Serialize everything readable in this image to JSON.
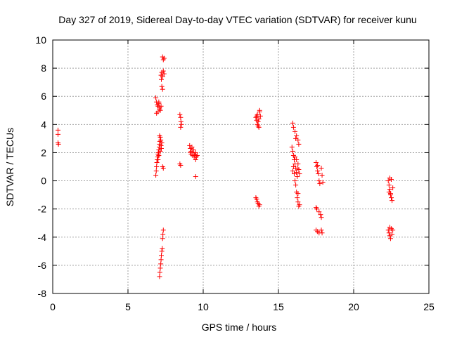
{
  "chart_data": {
    "type": "scatter",
    "title": "Day 327 of 2019, Sidereal Day-to-day VTEC variation (SDTVAR) for receiver kunu",
    "xlabel": "GPS time / hours",
    "ylabel": "SDTVAR / TECUs",
    "xlim": [
      0,
      25
    ],
    "ylim": [
      -8,
      10
    ],
    "xticks": [
      0,
      5,
      10,
      15,
      20,
      25
    ],
    "yticks": [
      -8,
      -6,
      -4,
      -2,
      0,
      2,
      4,
      6,
      8,
      10
    ],
    "grid": true,
    "marker": "+",
    "color": "#ff0000",
    "series": [
      {
        "name": "SDTVAR",
        "points": [
          [
            0.35,
            3.6
          ],
          [
            0.35,
            3.3
          ],
          [
            0.35,
            2.7
          ],
          [
            0.38,
            2.6
          ],
          [
            6.85,
            5.9
          ],
          [
            6.9,
            5.6
          ],
          [
            6.95,
            5.4
          ],
          [
            7.0,
            5.3
          ],
          [
            7.05,
            5.6
          ],
          [
            7.1,
            5.2
          ],
          [
            7.15,
            5.0
          ],
          [
            6.9,
            4.8
          ],
          [
            7.0,
            4.9
          ],
          [
            7.05,
            5.5
          ],
          [
            7.1,
            5.1
          ],
          [
            7.2,
            5.3
          ],
          [
            6.85,
            0.4
          ],
          [
            6.88,
            0.7
          ],
          [
            6.9,
            1.0
          ],
          [
            6.92,
            1.3
          ],
          [
            6.95,
            1.5
          ],
          [
            6.98,
            1.7
          ],
          [
            7.0,
            1.9
          ],
          [
            7.02,
            2.0
          ],
          [
            7.05,
            2.2
          ],
          [
            7.08,
            2.4
          ],
          [
            7.1,
            2.6
          ],
          [
            7.12,
            2.8
          ],
          [
            7.15,
            3.1
          ],
          [
            7.18,
            2.9
          ],
          [
            7.2,
            2.5
          ],
          [
            7.22,
            2.3
          ],
          [
            7.25,
            2.7
          ],
          [
            7.1,
            3.2
          ],
          [
            7.0,
            1.5
          ],
          [
            7.05,
            1.8
          ],
          [
            7.15,
            2.1
          ],
          [
            7.3,
            1.0
          ],
          [
            7.35,
            0.9
          ],
          [
            7.2,
            7.5
          ],
          [
            7.25,
            7.7
          ],
          [
            7.3,
            7.4
          ],
          [
            7.35,
            7.8
          ],
          [
            7.4,
            7.6
          ],
          [
            7.3,
            8.8
          ],
          [
            7.35,
            8.6
          ],
          [
            7.4,
            8.7
          ],
          [
            7.25,
            6.7
          ],
          [
            7.3,
            6.5
          ],
          [
            7.22,
            7.2
          ],
          [
            7.1,
            -6.8
          ],
          [
            7.12,
            -6.5
          ],
          [
            7.15,
            -6.2
          ],
          [
            7.18,
            -5.9
          ],
          [
            7.2,
            -5.6
          ],
          [
            7.22,
            -5.3
          ],
          [
            7.25,
            -5.0
          ],
          [
            7.28,
            -4.8
          ],
          [
            7.3,
            -4.1
          ],
          [
            7.32,
            -3.8
          ],
          [
            7.35,
            -3.5
          ],
          [
            8.45,
            4.7
          ],
          [
            8.5,
            4.5
          ],
          [
            8.52,
            4.2
          ],
          [
            8.55,
            4.0
          ],
          [
            8.5,
            3.8
          ],
          [
            8.45,
            1.2
          ],
          [
            8.5,
            1.1
          ],
          [
            9.1,
            2.5
          ],
          [
            9.15,
            2.3
          ],
          [
            9.2,
            2.1
          ],
          [
            9.25,
            2.4
          ],
          [
            9.3,
            2.0
          ],
          [
            9.35,
            2.2
          ],
          [
            9.4,
            1.9
          ],
          [
            9.45,
            1.8
          ],
          [
            9.5,
            2.0
          ],
          [
            9.55,
            1.7
          ],
          [
            9.6,
            1.8
          ],
          [
            9.2,
            1.9
          ],
          [
            9.3,
            1.8
          ],
          [
            9.4,
            1.7
          ],
          [
            9.5,
            1.5
          ],
          [
            9.15,
            2.0
          ],
          [
            9.5,
            0.3
          ],
          [
            13.5,
            4.5
          ],
          [
            13.55,
            4.3
          ],
          [
            13.6,
            4.7
          ],
          [
            13.65,
            4.2
          ],
          [
            13.7,
            4.4
          ],
          [
            13.75,
            4.9
          ],
          [
            13.6,
            4.0
          ],
          [
            13.65,
            3.9
          ],
          [
            13.7,
            3.8
          ],
          [
            13.55,
            4.6
          ],
          [
            13.75,
            5.0
          ],
          [
            13.8,
            4.6
          ],
          [
            13.5,
            -1.2
          ],
          [
            13.55,
            -1.3
          ],
          [
            13.6,
            -1.5
          ],
          [
            13.65,
            -1.6
          ],
          [
            13.7,
            -1.8
          ],
          [
            13.75,
            -1.7
          ],
          [
            15.95,
            4.1
          ],
          [
            16.0,
            3.8
          ],
          [
            16.1,
            3.5
          ],
          [
            16.2,
            3.2
          ],
          [
            16.3,
            2.9
          ],
          [
            16.35,
            2.6
          ],
          [
            16.15,
            3.0
          ],
          [
            15.9,
            2.4
          ],
          [
            15.95,
            2.1
          ],
          [
            16.0,
            1.8
          ],
          [
            16.05,
            1.5
          ],
          [
            16.1,
            1.2
          ],
          [
            16.15,
            0.9
          ],
          [
            16.2,
            0.6
          ],
          [
            16.25,
            0.3
          ],
          [
            16.0,
            1.0
          ],
          [
            16.05,
            0.5
          ],
          [
            16.1,
            0.0
          ],
          [
            16.15,
            -0.3
          ],
          [
            16.2,
            1.5
          ],
          [
            16.3,
            1.2
          ],
          [
            16.35,
            0.8
          ],
          [
            16.4,
            0.5
          ],
          [
            16.25,
            0.9
          ],
          [
            15.95,
            0.7
          ],
          [
            16.1,
            1.7
          ],
          [
            16.2,
            -0.8
          ],
          [
            16.25,
            -1.2
          ],
          [
            16.3,
            -1.5
          ],
          [
            16.35,
            -1.8
          ],
          [
            16.4,
            -1.7
          ],
          [
            16.3,
            -0.9
          ],
          [
            17.5,
            1.3
          ],
          [
            17.55,
            1.0
          ],
          [
            17.6,
            0.7
          ],
          [
            17.65,
            0.5
          ],
          [
            17.6,
            1.1
          ],
          [
            17.7,
            0.0
          ],
          [
            17.75,
            -0.2
          ],
          [
            17.85,
            0.9
          ],
          [
            17.9,
            0.4
          ],
          [
            17.95,
            -0.1
          ],
          [
            17.5,
            -1.9
          ],
          [
            17.55,
            -2.0
          ],
          [
            17.7,
            -2.2
          ],
          [
            17.8,
            -2.4
          ],
          [
            17.85,
            -2.6
          ],
          [
            17.5,
            -3.5
          ],
          [
            17.6,
            -3.6
          ],
          [
            17.7,
            -3.7
          ],
          [
            17.85,
            -3.5
          ],
          [
            17.9,
            -3.7
          ],
          [
            22.3,
            0.0
          ],
          [
            22.35,
            -0.3
          ],
          [
            22.4,
            -0.6
          ],
          [
            22.45,
            -0.9
          ],
          [
            22.5,
            -1.2
          ],
          [
            22.55,
            -1.4
          ],
          [
            22.4,
            0.2
          ],
          [
            22.5,
            0.1
          ],
          [
            22.6,
            -0.5
          ],
          [
            22.35,
            -0.8
          ],
          [
            22.45,
            -1.0
          ],
          [
            22.3,
            -3.5
          ],
          [
            22.35,
            -3.7
          ],
          [
            22.4,
            -3.9
          ],
          [
            22.45,
            -4.1
          ],
          [
            22.5,
            -3.4
          ],
          [
            22.55,
            -3.8
          ],
          [
            22.6,
            -3.5
          ],
          [
            22.4,
            -3.3
          ]
        ]
      }
    ]
  }
}
